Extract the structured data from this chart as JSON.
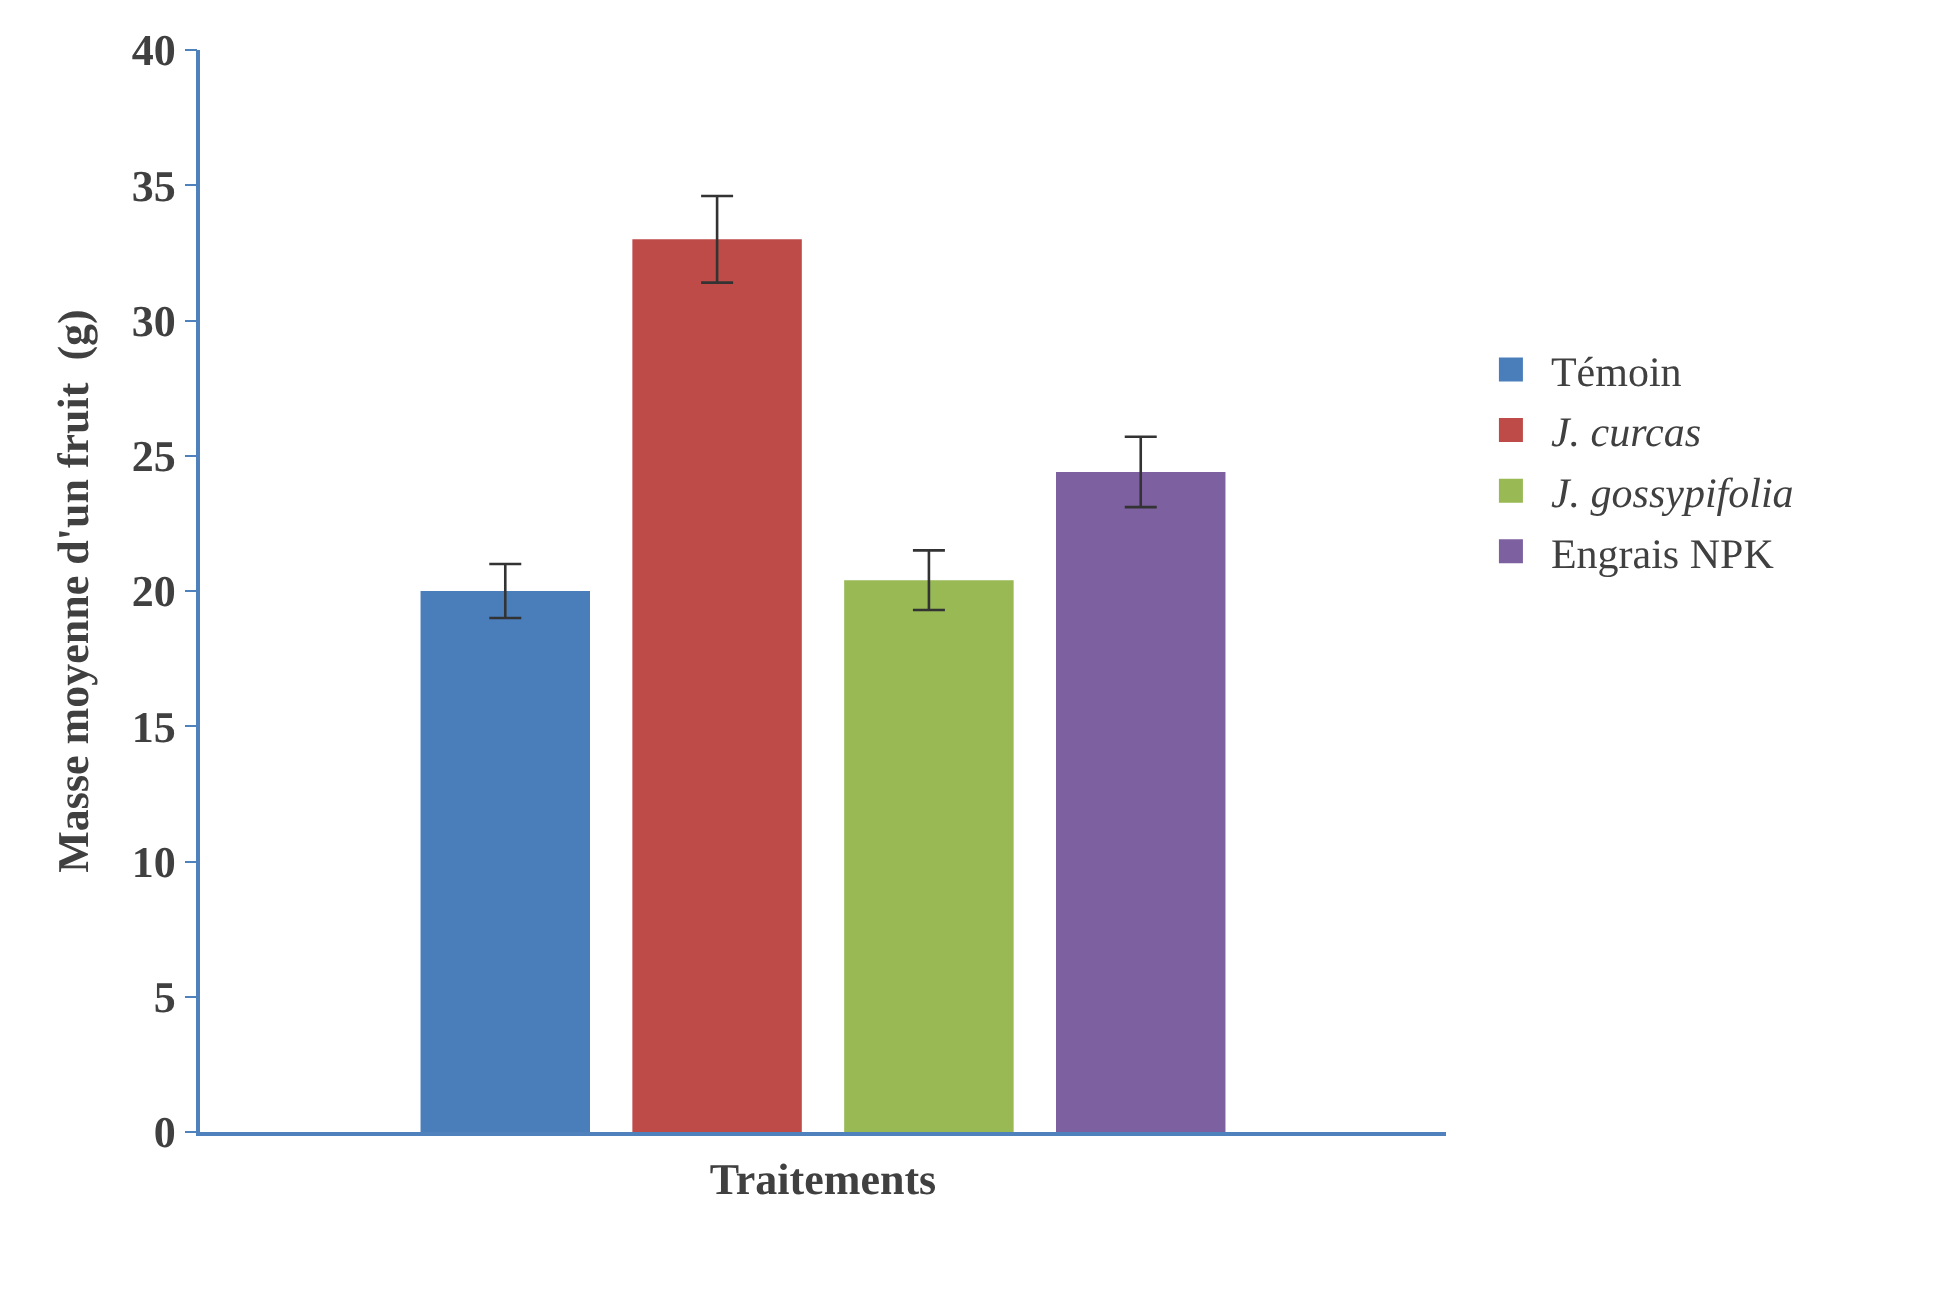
{
  "chart_data": {
    "type": "bar",
    "xlabel": "Traitements",
    "ylabel": "Masse moyenne d'un fruit  (g)",
    "categories": [
      null
    ],
    "series": [
      {
        "name": "Témoin",
        "color": "#4a7ebb",
        "values": [
          20.0
        ],
        "errors": [
          1.0
        ]
      },
      {
        "name": "J. curcas",
        "color": "#be4b48",
        "values": [
          33.0
        ],
        "errors": [
          1.6
        ]
      },
      {
        "name": "J. gossypifolia",
        "color": "#98b954",
        "values": [
          20.4
        ],
        "errors": [
          1.1
        ]
      },
      {
        "name": "Engrais NPK",
        "color": "#7d60a0",
        "values": [
          24.4
        ],
        "errors": [
          1.3
        ]
      }
    ],
    "ylim": [
      0,
      40
    ],
    "yticks": [
      0,
      5,
      10,
      15,
      20,
      25,
      30,
      35,
      40
    ],
    "grid": false,
    "legend": "right",
    "tick_labels": "y"
  }
}
